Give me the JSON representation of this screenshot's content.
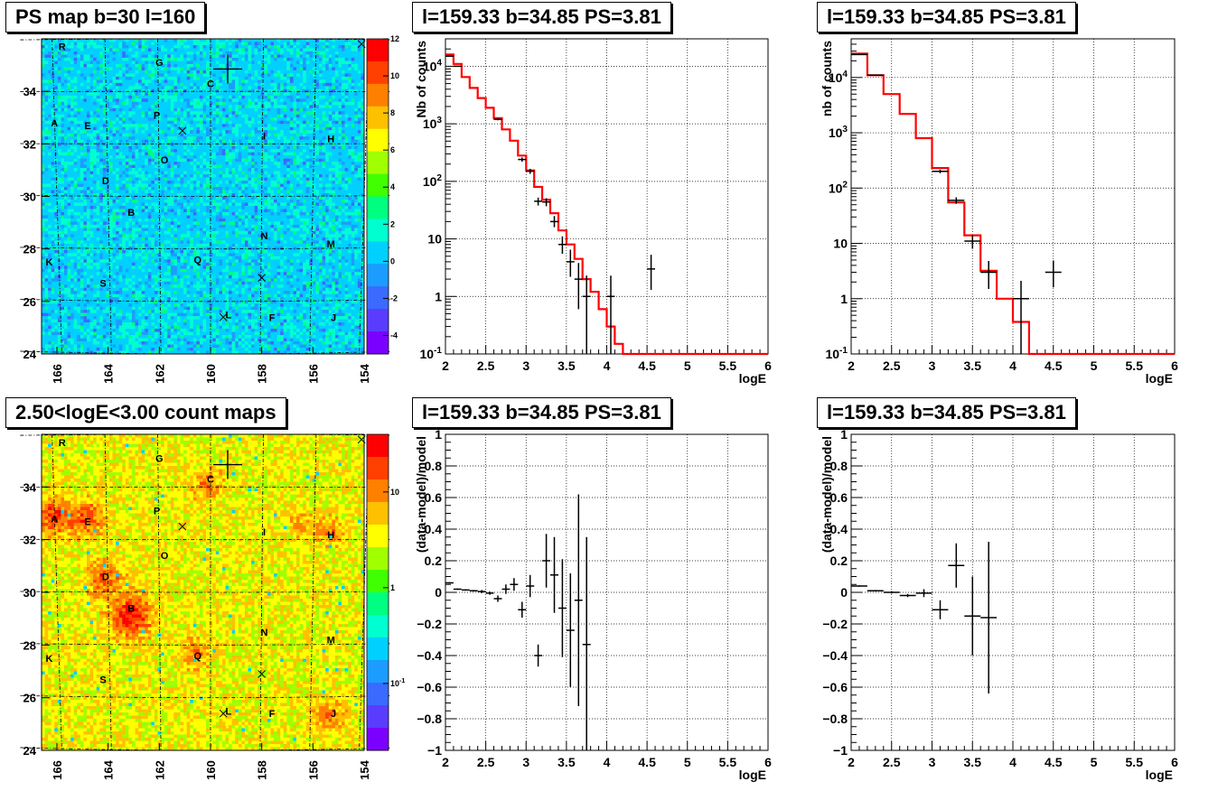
{
  "titles": {
    "map_top": "PS map b=30 l=160",
    "spec1": "l=159.33 b=34.85 PS=3.81",
    "spec2": "l=159.33 b=34.85 PS=3.81",
    "map_bottom": "2.50<logE<3.00 count maps",
    "res1": "l=159.33 b=34.85 PS=3.81",
    "res2": "l=159.33 b=34.85 PS=3.81"
  },
  "chart_data": [
    {
      "id": "map_top",
      "type": "heatmap",
      "title": "PS map b=30 l=160",
      "xticks": [
        "166",
        "164",
        "162",
        "160",
        "158",
        "156",
        "154"
      ],
      "yticks": [
        "24",
        "26",
        "28",
        "30",
        "32",
        "34"
      ],
      "colorbar_ticks": [
        "12",
        "10",
        "8",
        "6",
        "4",
        "2",
        "0",
        "-2",
        "-4"
      ],
      "colorbar_range": [
        -5,
        12
      ],
      "colorbar_colors": [
        "#7a00ff",
        "#5a3cff",
        "#3a6aff",
        "#1c9cff",
        "#00d0ff",
        "#00ffd0",
        "#00ff80",
        "#40ff00",
        "#a0ff00",
        "#ffff00",
        "#ffc000",
        "#ff8000",
        "#ff4000",
        "#ff0000"
      ],
      "background_color": "#33ddee",
      "sources": [
        {
          "label": "R",
          "l": 165.8,
          "b": 35.7
        },
        {
          "label": "G",
          "l": 162.0,
          "b": 35.1
        },
        {
          "label": "C",
          "l": 160.0,
          "b": 34.3
        },
        {
          "label": "A",
          "l": 166.1,
          "b": 32.8
        },
        {
          "label": "E",
          "l": 164.8,
          "b": 32.7
        },
        {
          "label": "P",
          "l": 162.1,
          "b": 33.1
        },
        {
          "label": "I",
          "l": 157.9,
          "b": 32.3
        },
        {
          "label": "H",
          "l": 155.3,
          "b": 32.2
        },
        {
          "label": "O",
          "l": 161.8,
          "b": 31.4
        },
        {
          "label": "D",
          "l": 164.1,
          "b": 30.6
        },
        {
          "label": "B",
          "l": 163.1,
          "b": 29.4
        },
        {
          "label": "N",
          "l": 157.9,
          "b": 28.5
        },
        {
          "label": "M",
          "l": 155.3,
          "b": 28.2
        },
        {
          "label": "K",
          "l": 166.3,
          "b": 27.5
        },
        {
          "label": "Q",
          "l": 160.5,
          "b": 27.6
        },
        {
          "label": "S",
          "l": 164.2,
          "b": 26.7
        },
        {
          "label": "L",
          "l": 159.3,
          "b": 25.5
        },
        {
          "label": "F",
          "l": 157.6,
          "b": 25.4
        },
        {
          "label": "J",
          "l": 155.2,
          "b": 25.4
        }
      ],
      "crosses": [
        {
          "l": 154.1,
          "b": 35.8
        },
        {
          "l": 161.1,
          "b": 32.5
        },
        {
          "l": 158.0,
          "b": 26.9
        },
        {
          "l": 159.5,
          "b": 25.4
        }
      ],
      "target": {
        "l": 159.33,
        "b": 34.85
      }
    },
    {
      "id": "spec1",
      "type": "line",
      "title": "l=159.33 b=34.85 PS=3.81",
      "xlabel": "logE",
      "ylabel": "Nb of counts",
      "xlim": [
        2,
        6
      ],
      "ylog": true,
      "ylim": [
        0.1,
        30000
      ],
      "xticks": [
        "2",
        "2.5",
        "3",
        "3.5",
        "4",
        "4.5",
        "5",
        "5.5",
        "6"
      ],
      "yticks": [
        {
          "v": 0.1,
          "t": "10",
          "e": "-1"
        },
        {
          "v": 1,
          "t": "1",
          "e": ""
        },
        {
          "v": 10,
          "t": "10",
          "e": ""
        },
        {
          "v": 100,
          "t": "10",
          "e": "2"
        },
        {
          "v": 1000,
          "t": "10",
          "e": "3"
        },
        {
          "v": 10000,
          "t": "10",
          "e": "4"
        }
      ],
      "model_color": "#ff0000",
      "model_edges": [
        2.0,
        2.1,
        2.2,
        2.3,
        2.4,
        2.5,
        2.6,
        2.7,
        2.8,
        2.9,
        3.0,
        3.1,
        3.2,
        3.3,
        3.4,
        3.5,
        3.6,
        3.7,
        3.8,
        3.9,
        4.0,
        4.1,
        4.2,
        6.0
      ],
      "model_values": [
        16000,
        11000,
        6500,
        4200,
        2800,
        1900,
        1250,
        800,
        510,
        280,
        155,
        80,
        48,
        28,
        14,
        8,
        4.5,
        2.0,
        1.2,
        0.6,
        0.3,
        0.15,
        0.1
      ],
      "data": [
        {
          "x": 2.05,
          "y": 15000,
          "ylo": 15000,
          "yhi": 15000,
          "xerr": 0.05
        },
        {
          "x": 2.15,
          "y": 10000,
          "ylo": 10000,
          "yhi": 10000,
          "xerr": 0.05
        },
        {
          "x": 2.65,
          "y": 1200,
          "ylo": 1150,
          "yhi": 1250,
          "xerr": 0.05
        },
        {
          "x": 2.95,
          "y": 240,
          "ylo": 220,
          "yhi": 260,
          "xerr": 0.05
        },
        {
          "x": 3.05,
          "y": 150,
          "ylo": 135,
          "yhi": 165,
          "xerr": 0.05
        },
        {
          "x": 3.15,
          "y": 45,
          "ylo": 38,
          "yhi": 52,
          "xerr": 0.05
        },
        {
          "x": 3.25,
          "y": 44,
          "ylo": 37,
          "yhi": 51,
          "xerr": 0.05
        },
        {
          "x": 3.35,
          "y": 20,
          "ylo": 16,
          "yhi": 25,
          "xerr": 0.05
        },
        {
          "x": 3.45,
          "y": 8,
          "ylo": 5.5,
          "yhi": 11,
          "xerr": 0.05
        },
        {
          "x": 3.55,
          "y": 4,
          "ylo": 2.2,
          "yhi": 6.5,
          "xerr": 0.05
        },
        {
          "x": 3.65,
          "y": 2,
          "ylo": 0.6,
          "yhi": 3.8,
          "xerr": 0.05
        },
        {
          "x": 3.75,
          "y": 1,
          "ylo": 0.1,
          "yhi": 2.3,
          "xerr": 0.05
        },
        {
          "x": 4.05,
          "y": 1,
          "ylo": 0.1,
          "yhi": 2.3,
          "xerr": 0.05
        },
        {
          "x": 4.55,
          "y": 3,
          "ylo": 1.3,
          "yhi": 5.3,
          "xerr": 0.05
        }
      ]
    },
    {
      "id": "spec2",
      "type": "line",
      "title": "l=159.33 b=34.85 PS=3.81",
      "xlabel": "logE",
      "ylabel": "nb of counts",
      "xlim": [
        2,
        6
      ],
      "ylog": true,
      "ylim": [
        0.1,
        50000
      ],
      "xticks": [
        "2",
        "2.5",
        "3",
        "3.5",
        "4",
        "4.5",
        "5",
        "5.5",
        "6"
      ],
      "yticks": [
        {
          "v": 0.1,
          "t": "10",
          "e": "-1"
        },
        {
          "v": 1,
          "t": "1",
          "e": ""
        },
        {
          "v": 10,
          "t": "10",
          "e": ""
        },
        {
          "v": 100,
          "t": "10",
          "e": "2"
        },
        {
          "v": 1000,
          "t": "10",
          "e": "3"
        },
        {
          "v": 10000,
          "t": "10",
          "e": "4"
        }
      ],
      "model_color": "#ff0000",
      "model_edges": [
        2.0,
        2.2,
        2.4,
        2.6,
        2.8,
        3.0,
        3.2,
        3.4,
        3.6,
        3.8,
        4.0,
        4.2,
        6.0
      ],
      "model_values": [
        27000,
        11000,
        5000,
        2200,
        800,
        230,
        55,
        14,
        3.2,
        1.0,
        0.38,
        0.1
      ],
      "data": [
        {
          "x": 2.1,
          "y": 26000,
          "ylo": 26000,
          "yhi": 26000,
          "xerr": 0.1
        },
        {
          "x": 2.3,
          "y": 11000,
          "ylo": 11000,
          "yhi": 11000,
          "xerr": 0.1
        },
        {
          "x": 3.1,
          "y": 200,
          "ylo": 185,
          "yhi": 215,
          "xerr": 0.1
        },
        {
          "x": 3.3,
          "y": 60,
          "ylo": 52,
          "yhi": 68,
          "xerr": 0.1
        },
        {
          "x": 3.5,
          "y": 11,
          "ylo": 8,
          "yhi": 14,
          "xerr": 0.1
        },
        {
          "x": 3.7,
          "y": 3,
          "ylo": 1.5,
          "yhi": 4.8,
          "xerr": 0.1
        },
        {
          "x": 4.1,
          "y": 1,
          "ylo": 0.1,
          "yhi": 2.1,
          "xerr": 0.1
        },
        {
          "x": 4.5,
          "y": 3,
          "ylo": 1.6,
          "yhi": 4.9,
          "xerr": 0.1
        }
      ]
    },
    {
      "id": "map_bottom",
      "type": "heatmap",
      "title": "2.50<logE<3.00 count maps",
      "xticks": [
        "166",
        "164",
        "162",
        "160",
        "158",
        "156",
        "154"
      ],
      "yticks": [
        "24",
        "26",
        "28",
        "30",
        "32",
        "34"
      ],
      "colorbar_ticks_log": [
        {
          "v": 0.1,
          "t": "10",
          "e": "-1"
        },
        {
          "v": 1,
          "t": "1",
          "e": ""
        },
        {
          "v": 10,
          "t": "10",
          "e": ""
        }
      ],
      "colorbar_log_range": [
        0.02,
        40
      ],
      "colorbar_colors": [
        "#7a00ff",
        "#5a3cff",
        "#3a6aff",
        "#1c9cff",
        "#00d0ff",
        "#00ffd0",
        "#00ff80",
        "#40ff00",
        "#a0ff00",
        "#ffff00",
        "#ffc000",
        "#ff8000",
        "#ff4000",
        "#ff0000"
      ],
      "background_color": "#e8d23a",
      "hotspots": [
        {
          "l": 166.1,
          "b": 32.9,
          "s": 1.0
        },
        {
          "l": 164.8,
          "b": 32.8,
          "s": 0.9
        },
        {
          "l": 164.1,
          "b": 30.5,
          "s": 0.9
        },
        {
          "l": 163.1,
          "b": 29.1,
          "s": 1.3
        },
        {
          "l": 160.1,
          "b": 34.1,
          "s": 0.7
        },
        {
          "l": 155.3,
          "b": 32.3,
          "s": 0.6
        },
        {
          "l": 160.6,
          "b": 27.7,
          "s": 0.7
        },
        {
          "l": 155.4,
          "b": 25.3,
          "s": 0.7
        },
        {
          "l": 156.4,
          "b": 32.6,
          "s": 0.5
        }
      ],
      "sources": [
        {
          "label": "R",
          "l": 165.8,
          "b": 35.7
        },
        {
          "label": "G",
          "l": 162.0,
          "b": 35.1
        },
        {
          "label": "C",
          "l": 160.0,
          "b": 34.3
        },
        {
          "label": "A",
          "l": 166.1,
          "b": 32.8
        },
        {
          "label": "E",
          "l": 164.8,
          "b": 32.7
        },
        {
          "label": "P",
          "l": 162.1,
          "b": 33.1
        },
        {
          "label": "I",
          "l": 157.9,
          "b": 32.3
        },
        {
          "label": "H",
          "l": 155.3,
          "b": 32.2
        },
        {
          "label": "O",
          "l": 161.8,
          "b": 31.4
        },
        {
          "label": "D",
          "l": 164.1,
          "b": 30.6
        },
        {
          "label": "B",
          "l": 163.1,
          "b": 29.4
        },
        {
          "label": "N",
          "l": 157.9,
          "b": 28.5
        },
        {
          "label": "M",
          "l": 155.3,
          "b": 28.2
        },
        {
          "label": "K",
          "l": 166.3,
          "b": 27.5
        },
        {
          "label": "Q",
          "l": 160.5,
          "b": 27.6
        },
        {
          "label": "S",
          "l": 164.2,
          "b": 26.7
        },
        {
          "label": "L",
          "l": 159.3,
          "b": 25.5
        },
        {
          "label": "F",
          "l": 157.6,
          "b": 25.4
        },
        {
          "label": "J",
          "l": 155.2,
          "b": 25.4
        }
      ],
      "crosses": [
        {
          "l": 154.1,
          "b": 35.8
        },
        {
          "l": 161.1,
          "b": 32.5
        },
        {
          "l": 158.0,
          "b": 26.9
        },
        {
          "l": 159.5,
          "b": 25.4
        }
      ],
      "target": {
        "l": 159.33,
        "b": 34.85
      }
    },
    {
      "id": "res1",
      "type": "scatter",
      "title": "l=159.33 b=34.85 PS=3.81",
      "xlabel": "logE",
      "ylabel": "(data-model)/model",
      "xlim": [
        2,
        6
      ],
      "ylim": [
        -1,
        1
      ],
      "xticks": [
        "2",
        "2.5",
        "3",
        "3.5",
        "4",
        "4.5",
        "5",
        "5.5",
        "6"
      ],
      "yticks": [
        "-1",
        "-0.8",
        "-0.6",
        "-0.4",
        "-0.2",
        "0",
        "0.2",
        "0.4",
        "0.6",
        "0.8",
        "1"
      ],
      "data": [
        {
          "x": 2.05,
          "y": 0.06,
          "ylo": 0.055,
          "yhi": 0.065,
          "xerr": 0.05
        },
        {
          "x": 2.15,
          "y": 0.02,
          "ylo": 0.015,
          "yhi": 0.025,
          "xerr": 0.05
        },
        {
          "x": 2.25,
          "y": 0.015,
          "ylo": 0.01,
          "yhi": 0.02,
          "xerr": 0.05
        },
        {
          "x": 2.35,
          "y": 0.01,
          "ylo": 0.005,
          "yhi": 0.015,
          "xerr": 0.05
        },
        {
          "x": 2.45,
          "y": 0.005,
          "ylo": -0.005,
          "yhi": 0.015,
          "xerr": 0.05
        },
        {
          "x": 2.55,
          "y": -0.005,
          "ylo": -0.015,
          "yhi": 0.005,
          "xerr": 0.05
        },
        {
          "x": 2.65,
          "y": -0.04,
          "ylo": -0.06,
          "yhi": -0.02,
          "xerr": 0.05
        },
        {
          "x": 2.75,
          "y": 0.02,
          "ylo": -0.01,
          "yhi": 0.05,
          "xerr": 0.05
        },
        {
          "x": 2.85,
          "y": 0.05,
          "ylo": 0.01,
          "yhi": 0.09,
          "xerr": 0.05
        },
        {
          "x": 2.95,
          "y": -0.11,
          "ylo": -0.16,
          "yhi": -0.06,
          "xerr": 0.05
        },
        {
          "x": 3.05,
          "y": 0.04,
          "ylo": -0.03,
          "yhi": 0.11,
          "xerr": 0.05
        },
        {
          "x": 3.15,
          "y": -0.4,
          "ylo": -0.47,
          "yhi": -0.33,
          "xerr": 0.05
        },
        {
          "x": 3.25,
          "y": 0.2,
          "ylo": 0.03,
          "yhi": 0.37,
          "xerr": 0.05
        },
        {
          "x": 3.35,
          "y": 0.11,
          "ylo": -0.13,
          "yhi": 0.35,
          "xerr": 0.05
        },
        {
          "x": 3.45,
          "y": -0.1,
          "ylo": -0.41,
          "yhi": 0.21,
          "xerr": 0.05
        },
        {
          "x": 3.55,
          "y": -0.24,
          "ylo": -0.6,
          "yhi": 0.12,
          "xerr": 0.05
        },
        {
          "x": 3.65,
          "y": -0.05,
          "ylo": -0.72,
          "yhi": 0.62,
          "xerr": 0.05
        },
        {
          "x": 3.75,
          "y": -0.33,
          "ylo": -1.0,
          "yhi": 0.35,
          "xerr": 0.05
        }
      ]
    },
    {
      "id": "res2",
      "type": "scatter",
      "title": "l=159.33 b=34.85 PS=3.81",
      "xlabel": "logE",
      "ylabel": "(data-model)/model",
      "xlim": [
        2,
        6
      ],
      "ylim": [
        -1,
        1
      ],
      "xticks": [
        "2",
        "2.5",
        "3",
        "3.5",
        "4",
        "4.5",
        "5",
        "5.5",
        "6"
      ],
      "yticks": [
        "-1",
        "-0.8",
        "-0.6",
        "-0.4",
        "-0.2",
        "0",
        "0.2",
        "0.4",
        "0.6",
        "0.8",
        "1"
      ],
      "data": [
        {
          "x": 2.1,
          "y": 0.04,
          "ylo": 0.035,
          "yhi": 0.045,
          "xerr": 0.1
        },
        {
          "x": 2.3,
          "y": 0.01,
          "ylo": 0.005,
          "yhi": 0.015,
          "xerr": 0.1
        },
        {
          "x": 2.5,
          "y": 0.0,
          "ylo": -0.008,
          "yhi": 0.008,
          "xerr": 0.1
        },
        {
          "x": 2.7,
          "y": -0.02,
          "ylo": -0.03,
          "yhi": -0.01,
          "xerr": 0.1
        },
        {
          "x": 2.9,
          "y": -0.005,
          "ylo": -0.03,
          "yhi": 0.02,
          "xerr": 0.1
        },
        {
          "x": 3.1,
          "y": -0.11,
          "ylo": -0.17,
          "yhi": -0.05,
          "xerr": 0.1
        },
        {
          "x": 3.3,
          "y": 0.17,
          "ylo": 0.03,
          "yhi": 0.31,
          "xerr": 0.1
        },
        {
          "x": 3.5,
          "y": -0.15,
          "ylo": -0.4,
          "yhi": 0.1,
          "xerr": 0.1
        },
        {
          "x": 3.7,
          "y": -0.16,
          "ylo": -0.64,
          "yhi": 0.32,
          "xerr": 0.1
        }
      ]
    }
  ]
}
